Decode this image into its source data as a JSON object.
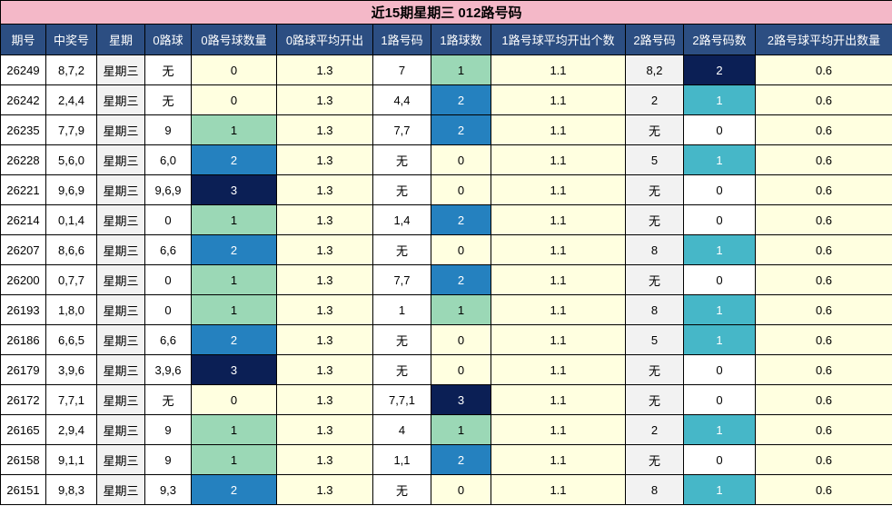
{
  "title": "近15期星期三 012路号码",
  "headers": [
    "期号",
    "中奖号",
    "星期",
    "0路球",
    "0路号球数量",
    "0路球平均开出",
    "1路号码",
    "1路球数",
    "1路号球平均开出个数",
    "2路号码",
    "2路号码数",
    "2路号球平均开出数量"
  ],
  "rows": [
    [
      "26249",
      "8,7,2",
      "星期三",
      "无",
      "0",
      "1.3",
      "7",
      "1",
      "1.1",
      "8,2",
      "2",
      "0.6"
    ],
    [
      "26242",
      "2,4,4",
      "星期三",
      "无",
      "0",
      "1.3",
      "4,4",
      "2",
      "1.1",
      "2",
      "1",
      "0.6"
    ],
    [
      "26235",
      "7,7,9",
      "星期三",
      "9",
      "1",
      "1.3",
      "7,7",
      "2",
      "1.1",
      "无",
      "0",
      "0.6"
    ],
    [
      "26228",
      "5,6,0",
      "星期三",
      "6,0",
      "2",
      "1.3",
      "无",
      "0",
      "1.1",
      "5",
      "1",
      "0.6"
    ],
    [
      "26221",
      "9,6,9",
      "星期三",
      "9,6,9",
      "3",
      "1.3",
      "无",
      "0",
      "1.1",
      "无",
      "0",
      "0.6"
    ],
    [
      "26214",
      "0,1,4",
      "星期三",
      "0",
      "1",
      "1.3",
      "1,4",
      "2",
      "1.1",
      "无",
      "0",
      "0.6"
    ],
    [
      "26207",
      "8,6,6",
      "星期三",
      "6,6",
      "2",
      "1.3",
      "无",
      "0",
      "1.1",
      "8",
      "1",
      "0.6"
    ],
    [
      "26200",
      "0,7,7",
      "星期三",
      "0",
      "1",
      "1.3",
      "7,7",
      "2",
      "1.1",
      "无",
      "0",
      "0.6"
    ],
    [
      "26193",
      "1,8,0",
      "星期三",
      "0",
      "1",
      "1.3",
      "1",
      "1",
      "1.1",
      "8",
      "1",
      "0.6"
    ],
    [
      "26186",
      "6,6,5",
      "星期三",
      "6,6",
      "2",
      "1.3",
      "无",
      "0",
      "1.1",
      "5",
      "1",
      "0.6"
    ],
    [
      "26179",
      "3,9,6",
      "星期三",
      "3,9,6",
      "3",
      "1.3",
      "无",
      "0",
      "1.1",
      "无",
      "0",
      "0.6"
    ],
    [
      "26172",
      "7,7,1",
      "星期三",
      "无",
      "0",
      "1.3",
      "7,7,1",
      "3",
      "1.1",
      "无",
      "0",
      "0.6"
    ],
    [
      "26165",
      "2,9,4",
      "星期三",
      "9",
      "1",
      "1.3",
      "4",
      "1",
      "1.1",
      "2",
      "1",
      "0.6"
    ],
    [
      "26158",
      "9,1,1",
      "星期三",
      "9",
      "1",
      "1.3",
      "1,1",
      "2",
      "1.1",
      "无",
      "0",
      "0.6"
    ],
    [
      "26151",
      "9,8,3",
      "星期三",
      "9,3",
      "2",
      "1.3",
      "无",
      "0",
      "1.1",
      "8",
      "1",
      "0.6"
    ]
  ],
  "colors": {
    "title_bg": "#f4b8c8",
    "header_bg": "#2c4e82",
    "count_1": "#9bd8b6",
    "count_2": "#2581bf",
    "count_3": "#0b1f55",
    "col2_count_1": "#46b7c8",
    "col2_count_2": "#0b1f55"
  }
}
